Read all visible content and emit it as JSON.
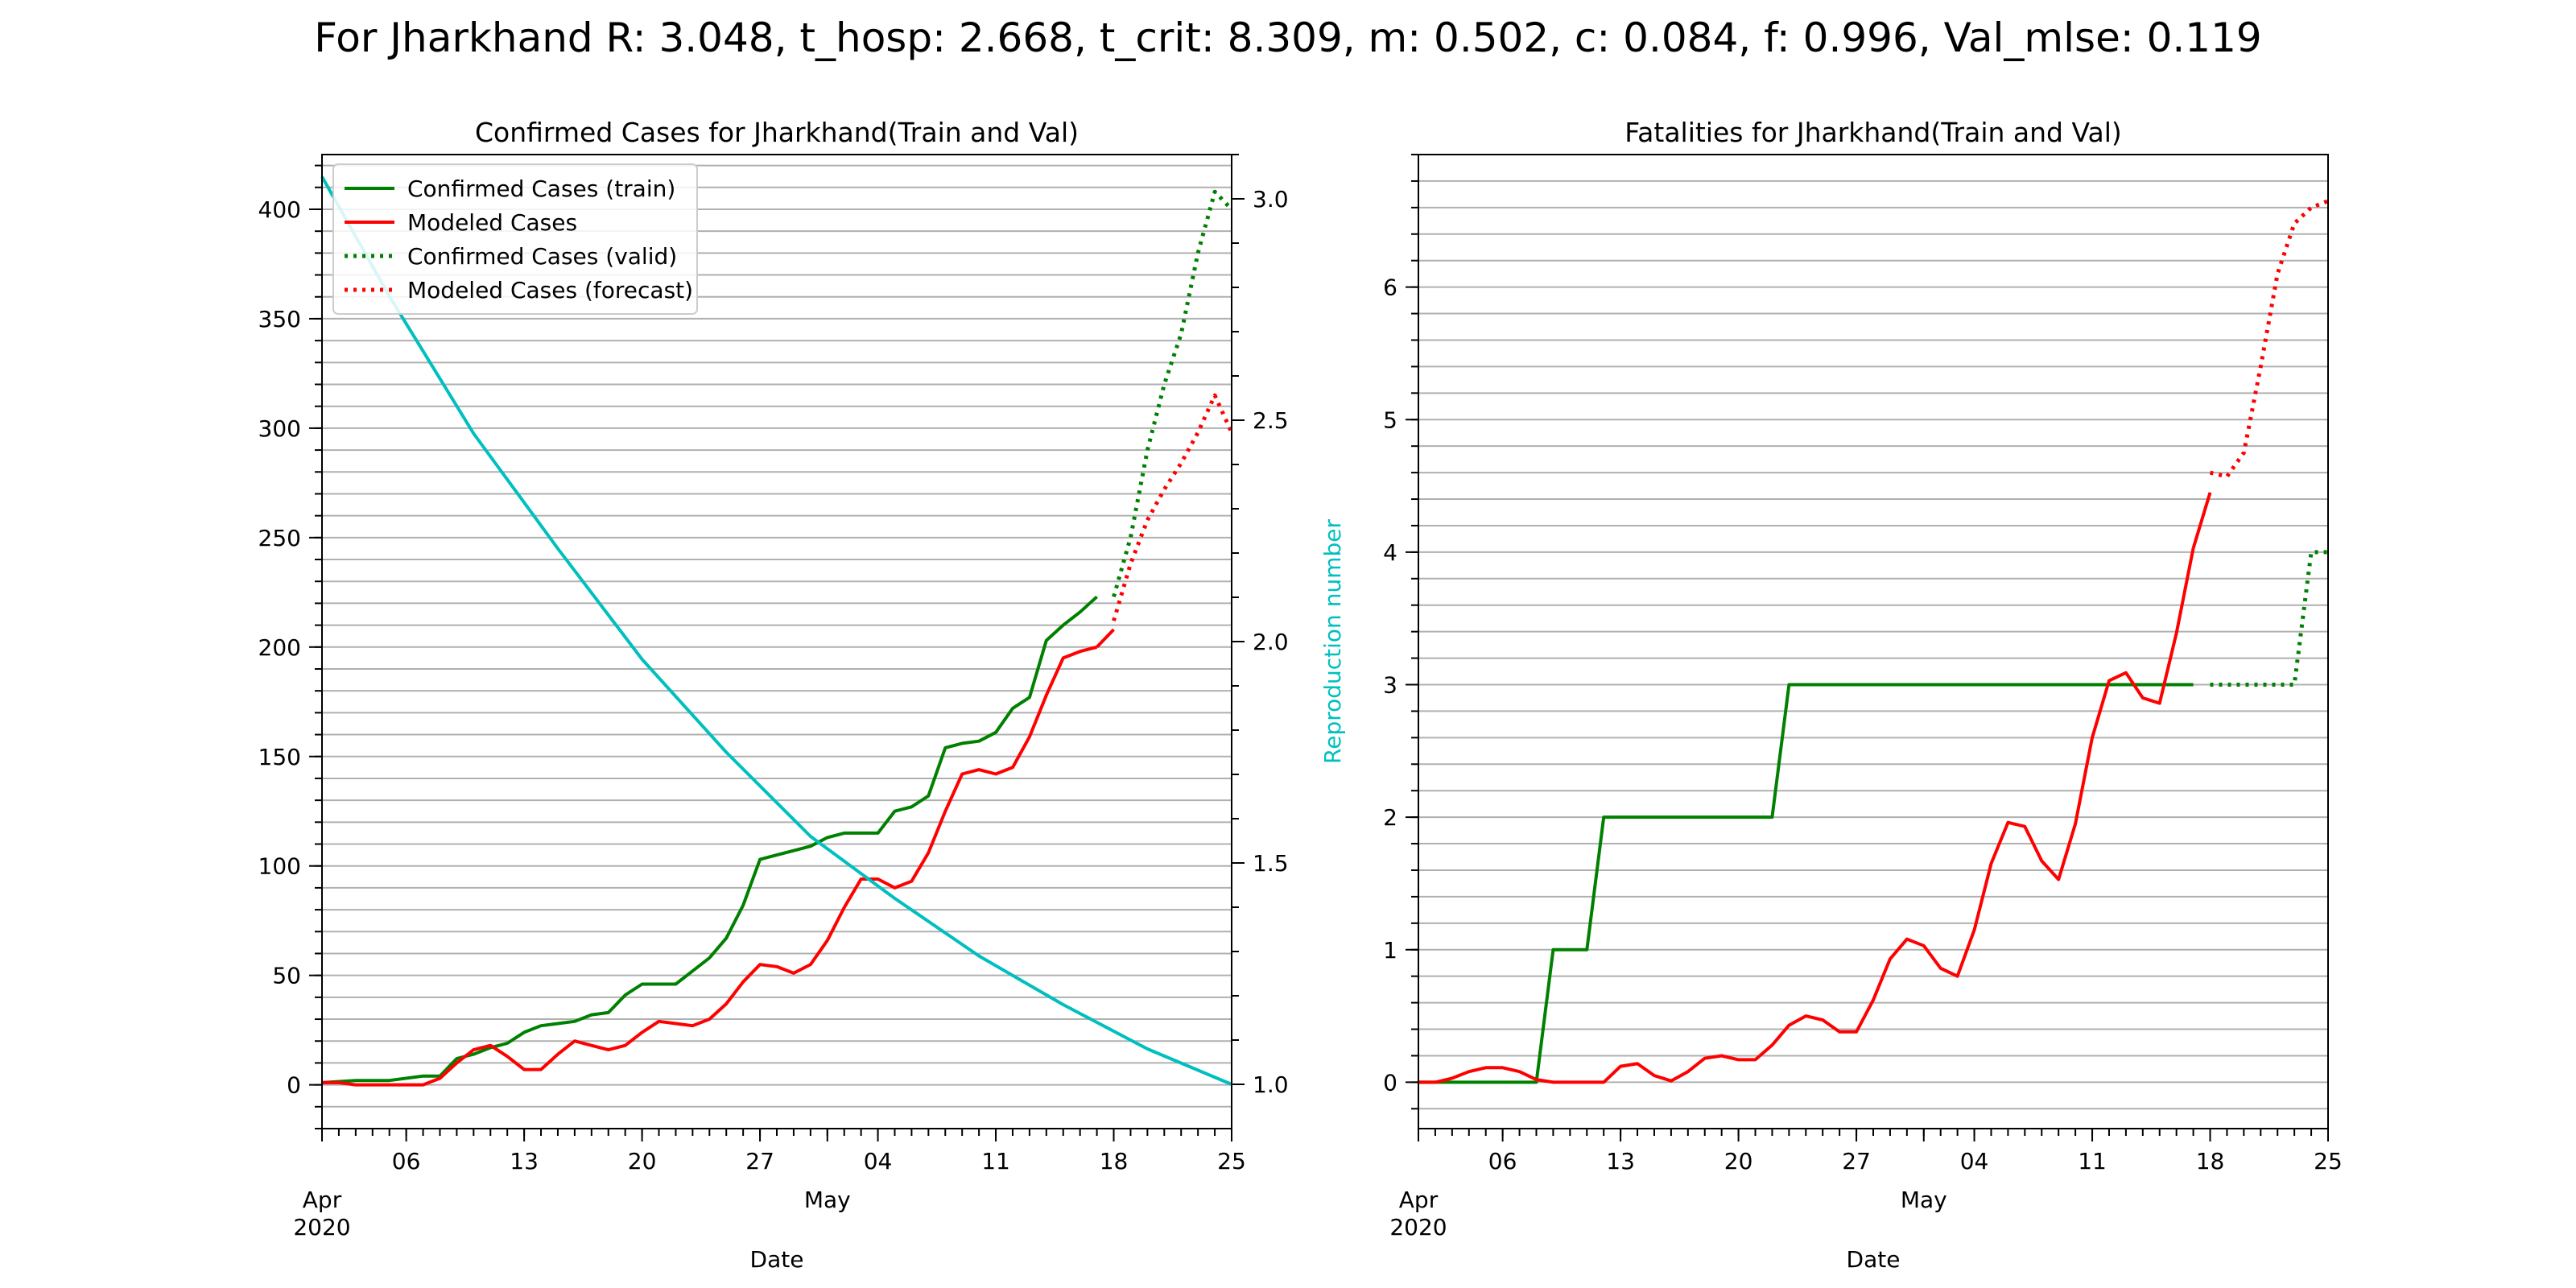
{
  "suptitle": "For Jharkhand R: 3.048, t_hosp: 2.668, t_crit: 8.309, m: 0.502, c: 0.084, f: 0.996, Val_mlse: 0.119",
  "colors": {
    "train": "#008000",
    "model": "#ff0000",
    "repro": "#00bfbf",
    "grid": "#b0b0b0"
  },
  "chart_data": [
    {
      "type": "line",
      "title": "Confirmed Cases for Jharkhand(Train and Val)",
      "xlabel": "Date",
      "ylabel": "",
      "y2label": "Reproduction number",
      "date_start": "2020-04-01",
      "xlim": [
        "2020-04-01",
        "2020-05-25"
      ],
      "ylim": [
        -20,
        425
      ],
      "y_ticks": [
        0,
        50,
        100,
        150,
        200,
        250,
        300,
        350,
        400
      ],
      "y2lim": [
        0.9,
        3.1
      ],
      "y2_ticks": [
        1.0,
        1.5,
        2.0,
        2.5,
        3.0
      ],
      "x_ticks": [
        {
          "date": "2020-04-01",
          "label": "Apr\n2020"
        },
        {
          "date": "2020-04-06",
          "label": "06"
        },
        {
          "date": "2020-04-13",
          "label": "13"
        },
        {
          "date": "2020-04-20",
          "label": "20"
        },
        {
          "date": "2020-04-27",
          "label": "27"
        },
        {
          "date": "2020-05-01",
          "label": "May"
        },
        {
          "date": "2020-05-04",
          "label": "04"
        },
        {
          "date": "2020-05-11",
          "label": "11"
        },
        {
          "date": "2020-05-18",
          "label": "18"
        },
        {
          "date": "2020-05-25",
          "label": "25"
        }
      ],
      "grid": "horizontal minor",
      "legend_position": "upper left",
      "series": [
        {
          "name": "Confirmed Cases (train)",
          "style": "solid",
          "color": "#008000",
          "axis": "left",
          "x": [
            "2020-04-01",
            "2020-04-03",
            "2020-04-05",
            "2020-04-07",
            "2020-04-08",
            "2020-04-09",
            "2020-04-10",
            "2020-04-11",
            "2020-04-12",
            "2020-04-13",
            "2020-04-14",
            "2020-04-15",
            "2020-04-16",
            "2020-04-17",
            "2020-04-18",
            "2020-04-19",
            "2020-04-20",
            "2020-04-22",
            "2020-04-23",
            "2020-04-24",
            "2020-04-25",
            "2020-04-26",
            "2020-04-27",
            "2020-04-28",
            "2020-04-29",
            "2020-04-30",
            "2020-05-01",
            "2020-05-02",
            "2020-05-03",
            "2020-05-04",
            "2020-05-05",
            "2020-05-06",
            "2020-05-07",
            "2020-05-08",
            "2020-05-09",
            "2020-05-10",
            "2020-05-11",
            "2020-05-12",
            "2020-05-13",
            "2020-05-14",
            "2020-05-15",
            "2020-05-16",
            "2020-05-17"
          ],
          "y": [
            1,
            2,
            2,
            4,
            4,
            12,
            14,
            17,
            19,
            24,
            27,
            28,
            29,
            32,
            33,
            41,
            46,
            46,
            52,
            58,
            67,
            82,
            103,
            105,
            107,
            109,
            113,
            115,
            115,
            115,
            125,
            127,
            132,
            154,
            156,
            157,
            161,
            172,
            177,
            203,
            210,
            216,
            223
          ]
        },
        {
          "name": "Modeled Cases",
          "style": "solid",
          "color": "#ff0000",
          "axis": "left",
          "x": [
            "2020-04-01",
            "2020-04-02",
            "2020-04-03",
            "2020-04-04",
            "2020-04-05",
            "2020-04-06",
            "2020-04-07",
            "2020-04-08",
            "2020-04-09",
            "2020-04-10",
            "2020-04-11",
            "2020-04-12",
            "2020-04-13",
            "2020-04-14",
            "2020-04-15",
            "2020-04-16",
            "2020-04-17",
            "2020-04-18",
            "2020-04-19",
            "2020-04-20",
            "2020-04-21",
            "2020-04-22",
            "2020-04-23",
            "2020-04-24",
            "2020-04-25",
            "2020-04-26",
            "2020-04-27",
            "2020-04-28",
            "2020-04-29",
            "2020-04-30",
            "2020-05-01",
            "2020-05-02",
            "2020-05-03",
            "2020-05-04",
            "2020-05-05",
            "2020-05-06",
            "2020-05-07",
            "2020-05-08",
            "2020-05-09",
            "2020-05-10",
            "2020-05-11",
            "2020-05-12",
            "2020-05-13",
            "2020-05-14",
            "2020-05-15",
            "2020-05-16",
            "2020-05-17"
          ],
          "y": [
            1,
            1,
            0,
            0,
            0,
            0,
            0,
            3,
            10,
            16,
            18,
            13,
            7,
            7,
            14,
            20,
            18,
            16,
            18,
            24,
            29,
            28,
            27,
            30,
            37,
            47,
            55,
            54,
            51,
            55,
            66,
            81,
            94,
            94,
            90,
            93,
            106,
            125,
            142,
            144,
            142,
            145,
            159,
            178,
            195,
            198,
            200
          ]
        },
        {
          "name": "Modeled Cases",
          "style": "solid",
          "color": "#ff0000",
          "axis": "left",
          "x": [
            "2020-05-17",
            "2020-05-18"
          ],
          "y": [
            200,
            208
          ]
        },
        {
          "name": "Confirmed Cases (valid)",
          "style": "dotted",
          "color": "#008000",
          "axis": "left",
          "x": [
            "2020-05-18",
            "2020-05-19",
            "2020-05-20",
            "2020-05-21",
            "2020-05-22",
            "2020-05-23",
            "2020-05-24",
            "2020-05-25"
          ],
          "y": [
            223,
            250,
            290,
            320,
            343,
            380,
            408,
            400
          ]
        },
        {
          "name": "Modeled Cases (forecast)",
          "style": "dotted",
          "color": "#ff0000",
          "axis": "left",
          "x": [
            "2020-05-18",
            "2020-05-19",
            "2020-05-20",
            "2020-05-21",
            "2020-05-22",
            "2020-05-23",
            "2020-05-24",
            "2020-05-25"
          ],
          "y": [
            212,
            238,
            258,
            272,
            284,
            298,
            315,
            298
          ]
        },
        {
          "name": "",
          "style": "solid",
          "color": "#00bfbf",
          "axis": "right",
          "x": [
            "2020-04-01",
            "2020-04-05",
            "2020-04-10",
            "2020-04-15",
            "2020-04-20",
            "2020-04-25",
            "2020-04-30",
            "2020-05-05",
            "2020-05-10",
            "2020-05-15",
            "2020-05-20",
            "2020-05-25"
          ],
          "y": [
            3.05,
            2.78,
            2.47,
            2.21,
            1.96,
            1.75,
            1.56,
            1.42,
            1.29,
            1.18,
            1.08,
            1.0
          ]
        }
      ]
    },
    {
      "type": "line",
      "title": "Fatalities for Jharkhand(Train and Val)",
      "xlabel": "Date",
      "ylabel": "",
      "date_start": "2020-04-01",
      "xlim": [
        "2020-04-01",
        "2020-05-25"
      ],
      "ylim": [
        -0.35,
        7.0
      ],
      "y_ticks": [
        0,
        1,
        2,
        3,
        4,
        5,
        6
      ],
      "x_ticks": [
        {
          "date": "2020-04-01",
          "label": "Apr\n2020"
        },
        {
          "date": "2020-04-06",
          "label": "06"
        },
        {
          "date": "2020-04-13",
          "label": "13"
        },
        {
          "date": "2020-04-20",
          "label": "20"
        },
        {
          "date": "2020-04-27",
          "label": "27"
        },
        {
          "date": "2020-05-01",
          "label": "May"
        },
        {
          "date": "2020-05-04",
          "label": "04"
        },
        {
          "date": "2020-05-11",
          "label": "11"
        },
        {
          "date": "2020-05-18",
          "label": "18"
        },
        {
          "date": "2020-05-25",
          "label": "25"
        }
      ],
      "grid": "horizontal minor",
      "series": [
        {
          "name": "Confirmed Cases (train)",
          "style": "solid",
          "color": "#008000",
          "x": [
            "2020-04-01",
            "2020-04-08",
            "2020-04-09",
            "2020-04-10",
            "2020-04-11",
            "2020-04-12",
            "2020-04-21",
            "2020-04-22",
            "2020-04-23",
            "2020-05-17"
          ],
          "y": [
            0,
            0,
            1,
            1,
            1,
            2,
            2,
            2,
            3,
            3
          ]
        },
        {
          "name": "Modeled Cases",
          "style": "solid",
          "color": "#ff0000",
          "x": [
            "2020-04-01",
            "2020-04-02",
            "2020-04-03",
            "2020-04-04",
            "2020-04-05",
            "2020-04-06",
            "2020-04-07",
            "2020-04-08",
            "2020-04-09",
            "2020-04-10",
            "2020-04-11",
            "2020-04-12",
            "2020-04-13",
            "2020-04-14",
            "2020-04-15",
            "2020-04-16",
            "2020-04-17",
            "2020-04-18",
            "2020-04-19",
            "2020-04-20",
            "2020-04-21",
            "2020-04-22",
            "2020-04-23",
            "2020-04-24",
            "2020-04-25",
            "2020-04-26",
            "2020-04-27",
            "2020-04-28",
            "2020-04-29",
            "2020-04-30",
            "2020-05-01",
            "2020-05-02",
            "2020-05-03",
            "2020-05-04",
            "2020-05-05",
            "2020-05-06",
            "2020-05-07",
            "2020-05-08",
            "2020-05-09",
            "2020-05-10",
            "2020-05-11",
            "2020-05-12",
            "2020-05-13",
            "2020-05-14",
            "2020-05-15",
            "2020-05-16",
            "2020-05-17"
          ],
          "y": [
            0,
            0,
            0.03,
            0.08,
            0.11,
            0.11,
            0.08,
            0.02,
            0,
            0,
            0,
            0,
            0.12,
            0.14,
            0.05,
            0.01,
            0.08,
            0.18,
            0.2,
            0.17,
            0.17,
            0.28,
            0.43,
            0.5,
            0.47,
            0.38,
            0.38,
            0.62,
            0.93,
            1.08,
            1.03,
            0.86,
            0.8,
            1.15,
            1.65,
            1.96,
            1.93,
            1.67,
            1.53,
            1.95,
            2.6,
            3.03,
            3.09,
            2.9,
            2.86,
            3.39,
            4.03
          ]
        },
        {
          "name": "Modeled Cases",
          "style": "solid",
          "color": "#ff0000",
          "x": [
            "2020-05-17",
            "2020-05-18"
          ],
          "y": [
            4.03,
            4.45
          ]
        },
        {
          "name": "Confirmed Cases (valid)",
          "style": "dotted",
          "color": "#008000",
          "x": [
            "2020-05-18",
            "2020-05-19",
            "2020-05-20",
            "2020-05-21",
            "2020-05-22",
            "2020-05-23",
            "2020-05-24",
            "2020-05-25"
          ],
          "y": [
            3,
            3,
            3,
            3,
            3,
            3,
            4,
            4
          ]
        },
        {
          "name": "Modeled Cases (forecast)",
          "style": "dotted",
          "color": "#ff0000",
          "x": [
            "2020-05-18",
            "2020-05-19",
            "2020-05-20",
            "2020-05-21",
            "2020-05-22",
            "2020-05-23",
            "2020-05-24",
            "2020-05-25"
          ],
          "y": [
            4.6,
            4.57,
            4.75,
            5.4,
            6.1,
            6.48,
            6.6,
            6.65
          ]
        }
      ]
    }
  ]
}
